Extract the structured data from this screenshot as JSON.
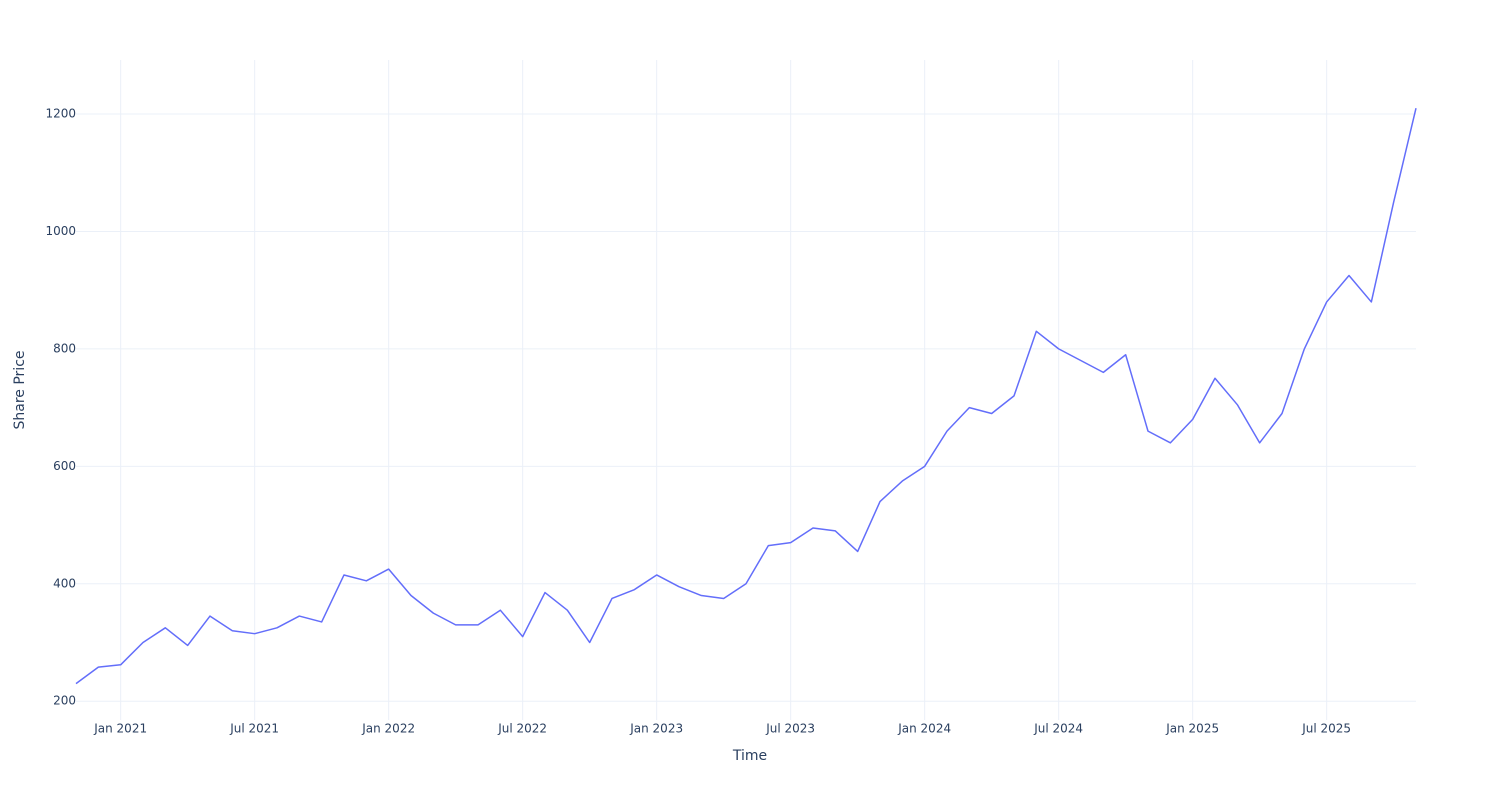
{
  "chart_data": {
    "type": "line",
    "x_label": "Time",
    "y_label": "Share Price",
    "x": [
      "2020-11",
      "2020-12",
      "2021-01",
      "2021-02",
      "2021-03",
      "2021-04",
      "2021-05",
      "2021-06",
      "2021-07",
      "2021-08",
      "2021-09",
      "2021-10",
      "2021-11",
      "2021-12",
      "2022-01",
      "2022-02",
      "2022-03",
      "2022-04",
      "2022-05",
      "2022-06",
      "2022-07",
      "2022-08",
      "2022-09",
      "2022-10",
      "2022-11",
      "2022-12",
      "2023-01",
      "2023-02",
      "2023-03",
      "2023-04",
      "2023-05",
      "2023-06",
      "2023-07",
      "2023-08",
      "2023-09",
      "2023-10",
      "2023-11",
      "2023-12",
      "2024-01",
      "2024-02",
      "2024-03",
      "2024-04",
      "2024-05",
      "2024-06",
      "2024-07",
      "2024-08",
      "2024-09",
      "2024-10",
      "2024-11",
      "2024-12",
      "2025-01",
      "2025-02",
      "2025-03",
      "2025-04",
      "2025-05",
      "2025-06",
      "2025-07",
      "2025-08",
      "2025-09",
      "2025-10",
      "2025-11"
    ],
    "series": [
      {
        "color": "#636efa",
        "values": [
          230,
          258,
          262,
          300,
          325,
          295,
          345,
          320,
          315,
          325,
          345,
          335,
          415,
          405,
          425,
          380,
          350,
          330,
          330,
          355,
          310,
          385,
          355,
          300,
          375,
          390,
          415,
          395,
          380,
          375,
          400,
          465,
          470,
          495,
          490,
          455,
          540,
          575,
          600,
          660,
          700,
          690,
          720,
          830,
          800,
          780,
          760,
          790,
          660,
          640,
          680,
          750,
          705,
          640,
          690,
          800,
          880,
          925,
          880,
          1050,
          1210
        ]
      }
    ],
    "xlim": [
      "2020-11",
      "2025-11"
    ],
    "xticks": [
      {
        "value": "2021-01",
        "label": "Jan 2021"
      },
      {
        "value": "2021-07",
        "label": "Jul 2021"
      },
      {
        "value": "2022-01",
        "label": "Jan 2022"
      },
      {
        "value": "2022-07",
        "label": "Jul 2022"
      },
      {
        "value": "2023-01",
        "label": "Jan 2023"
      },
      {
        "value": "2023-07",
        "label": "Jul 2023"
      },
      {
        "value": "2024-01",
        "label": "Jan 2024"
      },
      {
        "value": "2024-07",
        "label": "Jul 2024"
      },
      {
        "value": "2025-01",
        "label": "Jan 2025"
      },
      {
        "value": "2025-07",
        "label": "Jul 2025"
      }
    ],
    "ylim": [
      168,
      1292
    ],
    "yticks": [
      200,
      400,
      600,
      800,
      1000,
      1200
    ],
    "grid": true
  }
}
